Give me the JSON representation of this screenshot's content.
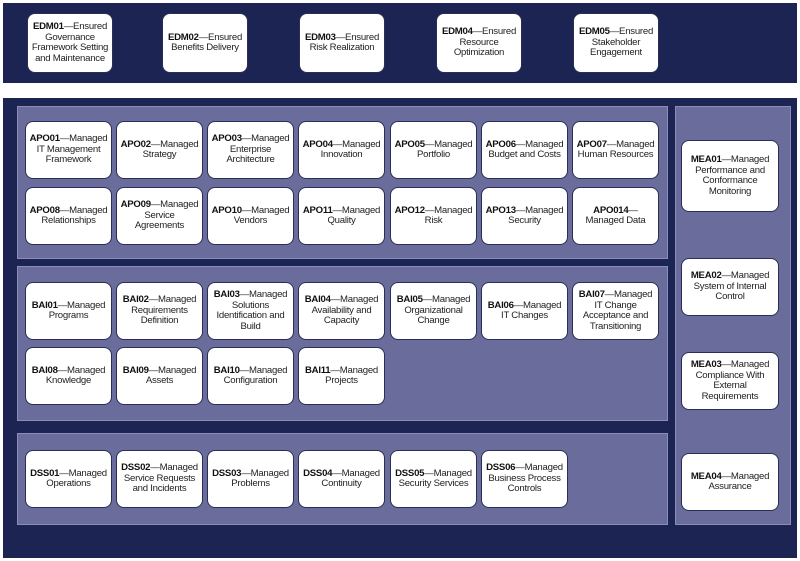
{
  "colors": {
    "navy": "#1b2453",
    "panel": "#6a6d9b",
    "box": "#ffffff"
  },
  "edm": [
    {
      "code": "EDM01",
      "text": "—Ensured Governance Framework Setting and Maintenance"
    },
    {
      "code": "EDM02",
      "text": "—Ensured Benefits Delivery"
    },
    {
      "code": "EDM03",
      "text": "—Ensured Risk Realization"
    },
    {
      "code": "EDM04",
      "text": "—Ensured Resource Optimization"
    },
    {
      "code": "EDM05",
      "text": "—Ensured Stakeholder Engagement"
    }
  ],
  "apo": [
    {
      "code": "APO01",
      "text": "—Managed IT Management Framework"
    },
    {
      "code": "APO02",
      "text": "—Managed Strategy"
    },
    {
      "code": "APO03",
      "text": "—Managed Enterprise Architecture"
    },
    {
      "code": "APO04",
      "text": "—Managed Innovation"
    },
    {
      "code": "APO05",
      "text": "—Managed Portfolio"
    },
    {
      "code": "APO06",
      "text": "—Managed Budget and Costs"
    },
    {
      "code": "APO07",
      "text": "—Managed Human Resources"
    },
    {
      "code": "APO08",
      "text": "—Managed Relationships"
    },
    {
      "code": "APO09",
      "text": "—Managed Service Agreements"
    },
    {
      "code": "APO10",
      "text": "—Managed Vendors"
    },
    {
      "code": "APO11",
      "text": "—Managed Quality"
    },
    {
      "code": "APO12",
      "text": "—Managed Risk"
    },
    {
      "code": "APO13",
      "text": "—Managed Security"
    },
    {
      "code": "APO014",
      "text": "—Managed Data"
    }
  ],
  "bai": [
    {
      "code": "BAI01",
      "text": "—Managed Programs"
    },
    {
      "code": "BAI02",
      "text": "—Managed Requirements Definition"
    },
    {
      "code": "BAI03",
      "text": "—Managed Solutions Identification and Build"
    },
    {
      "code": "BAI04",
      "text": "—Managed Availability and Capacity"
    },
    {
      "code": "BAI05",
      "text": "—Managed Organizational Change"
    },
    {
      "code": "BAI06",
      "text": "—Managed IT Changes"
    },
    {
      "code": "BAI07",
      "text": "—Managed IT Change Acceptance and Transitioning"
    },
    {
      "code": "BAI08",
      "text": "—Managed Knowledge"
    },
    {
      "code": "BAI09",
      "text": "—Managed Assets"
    },
    {
      "code": "BAI10",
      "text": "—Managed Configuration"
    },
    {
      "code": "BAI11",
      "text": "—Managed Projects"
    }
  ],
  "dss": [
    {
      "code": "DSS01",
      "text": "—Managed Operations"
    },
    {
      "code": "DSS02",
      "text": "—Managed Service Requests and Incidents"
    },
    {
      "code": "DSS03",
      "text": "—Managed Problems"
    },
    {
      "code": "DSS04",
      "text": "—Managed Continuity"
    },
    {
      "code": "DSS05",
      "text": "—Managed Security Services"
    },
    {
      "code": "DSS06",
      "text": "—Managed Business Process Controls"
    }
  ],
  "mea": [
    {
      "code": "MEA01",
      "text": "—Managed Performance and Conformance Monitoring"
    },
    {
      "code": "MEA02",
      "text": "—Managed System of Internal Control"
    },
    {
      "code": "MEA03",
      "text": "—Managed Compliance With External Requirements"
    },
    {
      "code": "MEA04",
      "text": "—Managed Assurance"
    }
  ]
}
